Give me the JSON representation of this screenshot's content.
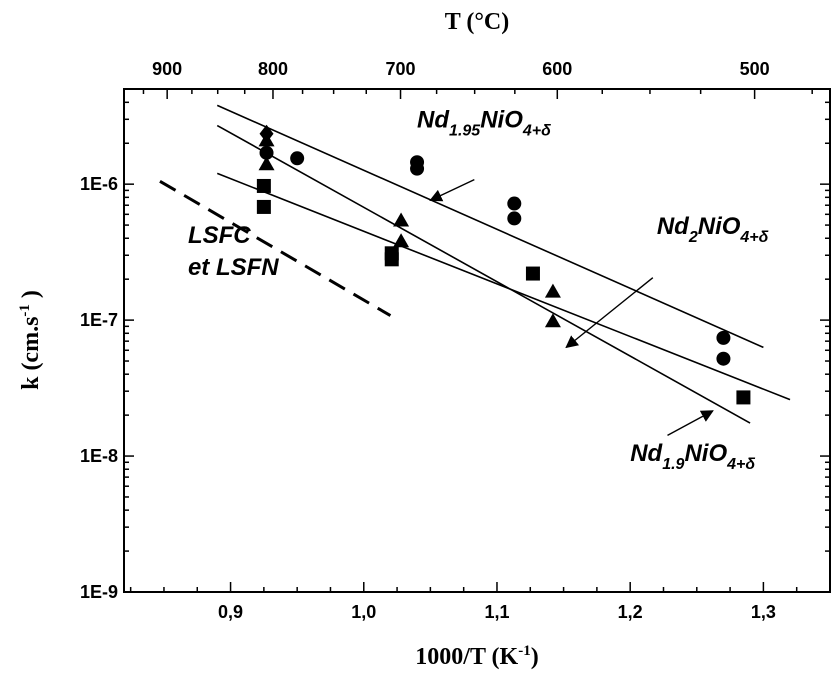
{
  "chart_data": {
    "type": "scatter",
    "xlabel": "1000/T (K",
    "xlabel_sup": "-1",
    "xlabel_end": ")",
    "ylabel": "k (cm.s",
    "ylabel_sup": "-1",
    "ylabel_end": " )",
    "top_axis_label": "T (°C)",
    "xlim": [
      0.82,
      1.35
    ],
    "ylim_log10": [
      -9,
      -5.3
    ],
    "x_ticks": [
      0.9,
      1.0,
      1.1,
      1.2,
      1.3
    ],
    "x_tick_labels": [
      "0,9",
      "1,0",
      "1,1",
      "1,2",
      "1,3"
    ],
    "y_ticks_log10": [
      -9,
      -8,
      -7,
      -6
    ],
    "y_tick_labels": [
      "1E-9",
      "1E-8",
      "1E-7",
      "1E-6"
    ],
    "top_ticks_celsius": [
      900,
      800,
      700,
      600,
      500
    ],
    "top_tick_labels": [
      "900",
      "800",
      "700",
      "600",
      "500"
    ],
    "series": [
      {
        "marker": "circle",
        "points": [
          [
            0.927,
            1.7e-06
          ],
          [
            0.95,
            1.55e-06
          ],
          [
            1.04,
            1.45e-06
          ],
          [
            1.04,
            1.3e-06
          ],
          [
            1.113,
            7.2e-07
          ],
          [
            1.113,
            5.6e-07
          ],
          [
            1.27,
            7.4e-08
          ],
          [
            1.27,
            5.2e-08
          ]
        ]
      },
      {
        "marker": "triangle",
        "points": [
          [
            0.927,
            2.1e-06
          ],
          [
            0.927,
            1.4e-06
          ],
          [
            1.028,
            5.4e-07
          ],
          [
            1.028,
            3.8e-07
          ],
          [
            1.142,
            1.62e-07
          ],
          [
            1.142,
            9.8e-08
          ]
        ]
      },
      {
        "marker": "square",
        "points": [
          [
            0.925,
            9.7e-07
          ],
          [
            0.925,
            6.8e-07
          ],
          [
            1.021,
            3.1e-07
          ],
          [
            1.021,
            2.8e-07
          ],
          [
            1.127,
            2.2e-07
          ],
          [
            1.285,
            2.7e-08
          ]
        ]
      },
      {
        "marker": "diamond",
        "points": [
          [
            0.927,
            2.35e-06
          ]
        ]
      }
    ],
    "fit_lines": [
      {
        "x": [
          0.89,
          1.3
        ],
        "y": [
          3.8e-06,
          6.3e-08
        ]
      },
      {
        "x": [
          0.89,
          1.32
        ],
        "y": [
          1.2e-06,
          2.6e-08
        ]
      },
      {
        "x": [
          0.89,
          1.29
        ],
        "y": [
          2.7e-06,
          1.75e-08
        ]
      }
    ],
    "dashed_line": {
      "x": [
        0.847,
        1.02
      ],
      "y": [
        1.05e-06,
        1.08e-07
      ]
    },
    "annotations": [
      {
        "base": "Nd",
        "sub": "1.95",
        "rest": "NiO",
        "sub2": "4+δ",
        "anchor": [
          1.04,
          2.6e-06
        ],
        "arrow_from": [
          1.083,
          1.08e-06
        ],
        "arrow_to": [
          1.05,
          7.6e-07
        ]
      },
      {
        "base": "Nd",
        "sub": "2",
        "rest": "NiO",
        "sub2": "4+δ",
        "anchor": [
          1.22,
          4.3e-07
        ],
        "arrow_from": [
          1.217,
          2.05e-07
        ],
        "arrow_to": [
          1.152,
          6.3e-08
        ]
      },
      {
        "base": "Nd",
        "sub": "1.9",
        "rest": "NiO",
        "sub2": "4+δ",
        "anchor": [
          1.2,
          9.2e-09
        ],
        "arrow_from": [
          1.228,
          1.42e-08
        ],
        "arrow_to": [
          1.262,
          2.15e-08
        ]
      },
      {
        "lines": [
          "LSFC",
          "et LSFN"
        ],
        "anchor": [
          0.868,
          3.7e-07
        ]
      }
    ]
  }
}
